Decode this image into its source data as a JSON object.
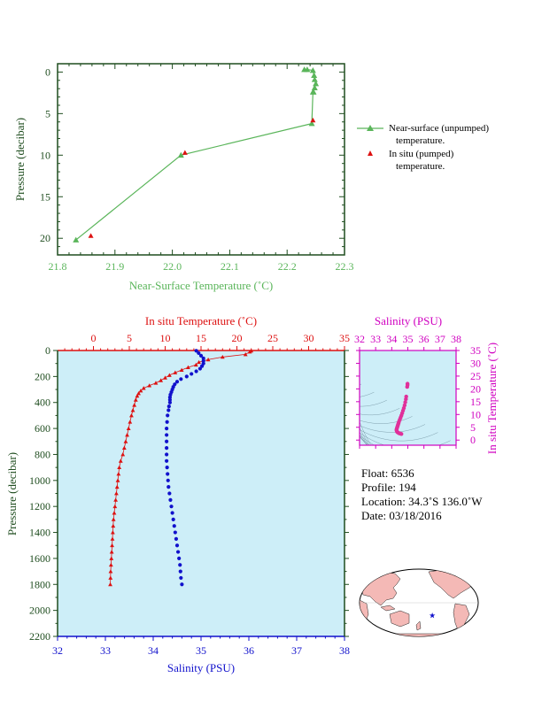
{
  "colors": {
    "green": "#5ab55a",
    "red": "#dd1111",
    "blue": "#1111cc",
    "magenta": "#d000c0",
    "axis_dark": "#1f4d1f",
    "panel_bg": "#cdeef8",
    "land": "#f4b9b6",
    "ocean": "#ffffff"
  },
  "top_chart": {
    "chart_data": {
      "type": "line",
      "xlabel": "Near-Surface Temperature (˚C)",
      "ylabel": "Pressure (decibar)",
      "xlim": [
        21.8,
        22.3
      ],
      "ylim": [
        22,
        -1
      ],
      "xticks": [
        "21.8",
        "21.9",
        "22.0",
        "22.1",
        "22.2",
        "22.3"
      ],
      "yticks": [
        "0",
        "5",
        "10",
        "15",
        "20"
      ],
      "series": [
        {
          "name": "Near-surface (unpumped) temperature.",
          "x": [
            22.23,
            22.235,
            22.245,
            22.247,
            22.248,
            22.25,
            22.248,
            22.246,
            22.245,
            22.243,
            22.015,
            21.832
          ],
          "y": [
            -0.3,
            -0.3,
            -0.2,
            0.4,
            0.9,
            1.4,
            1.9,
            2.4,
            2.4,
            6.2,
            10.0,
            20.2
          ],
          "marker": "triangle",
          "line": true
        },
        {
          "name": "In situ (pumped) temperature.",
          "x": [
            22.245,
            22.022,
            21.858
          ],
          "y": [
            5.8,
            9.7,
            19.7
          ],
          "marker": "triangle",
          "line": false
        }
      ]
    },
    "legend": {
      "item1_line1": "Near-surface (unpumped)",
      "item1_line2": "temperature.",
      "item2_line1": "In situ (pumped)",
      "item2_line2": "temperature."
    }
  },
  "profile_chart": {
    "chart_data": {
      "type": "scatter",
      "top_xlabel": "In situ Temperature (˚C)",
      "bottom_xlabel": "Salinity (PSU)",
      "ylabel": "Pressure (decibar)",
      "temp_lim": [
        -5,
        35
      ],
      "sal_lim": [
        32,
        38
      ],
      "pres_lim": [
        0,
        2200
      ],
      "temp_ticks": [
        "0",
        "5",
        "10",
        "15",
        "20",
        "25",
        "30",
        "35"
      ],
      "sal_ticks": [
        "32",
        "33",
        "34",
        "35",
        "36",
        "37",
        "38"
      ],
      "pres_ticks": [
        "0",
        "200",
        "400",
        "600",
        "800",
        "1000",
        "1200",
        "1400",
        "1600",
        "1800",
        "2000",
        "2200"
      ],
      "temperature_series": {
        "name": "In situ Temperature",
        "pressure": [
          2,
          10,
          30,
          50,
          70,
          90,
          110,
          130,
          150,
          170,
          190,
          210,
          230,
          250,
          270,
          290,
          310,
          330,
          350,
          380,
          420,
          460,
          500,
          550,
          600,
          650,
          700,
          750,
          800,
          850,
          900,
          950,
          1000,
          1050,
          1100,
          1150,
          1200,
          1250,
          1300,
          1350,
          1400,
          1450,
          1500,
          1550,
          1600,
          1650,
          1700,
          1750,
          1800
        ],
        "temperature": [
          22.0,
          21.8,
          21.2,
          18.0,
          16.0,
          14.7,
          14.3,
          13.2,
          12.3,
          11.4,
          10.6,
          10.0,
          9.4,
          8.7,
          7.8,
          7.0,
          6.6,
          6.3,
          6.1,
          5.9,
          5.7,
          5.5,
          5.3,
          5.1,
          4.9,
          4.7,
          4.5,
          4.3,
          4.1,
          3.8,
          3.6,
          3.5,
          3.4,
          3.3,
          3.2,
          3.1,
          3.0,
          2.9,
          2.8,
          2.75,
          2.7,
          2.65,
          2.6,
          2.55,
          2.5,
          2.45,
          2.4,
          2.38,
          2.35
        ]
      },
      "salinity_series": {
        "name": "Salinity",
        "pressure": [
          2,
          20,
          40,
          60,
          80,
          100,
          120,
          140,
          160,
          180,
          200,
          220,
          240,
          260,
          280,
          300,
          320,
          340,
          360,
          380,
          400,
          430,
          460,
          500,
          550,
          600,
          650,
          700,
          750,
          800,
          850,
          900,
          950,
          1000,
          1050,
          1100,
          1150,
          1200,
          1250,
          1300,
          1350,
          1400,
          1450,
          1500,
          1550,
          1600,
          1650,
          1700,
          1750,
          1800
        ],
        "salinity": [
          34.9,
          34.95,
          35.0,
          35.05,
          35.05,
          35.05,
          35.02,
          34.98,
          34.9,
          34.8,
          34.7,
          34.58,
          34.5,
          34.45,
          34.42,
          34.4,
          34.38,
          34.36,
          34.35,
          34.35,
          34.35,
          34.33,
          34.32,
          34.3,
          34.29,
          34.28,
          34.28,
          34.28,
          34.28,
          34.28,
          34.28,
          34.29,
          34.3,
          34.31,
          34.32,
          34.34,
          34.36,
          34.38,
          34.4,
          34.42,
          34.44,
          34.46,
          34.48,
          34.5,
          34.52,
          34.54,
          34.56,
          34.57,
          34.58,
          34.6
        ]
      }
    }
  },
  "ts_chart": {
    "chart_data": {
      "type": "scatter",
      "xlabel": "Salinity (PSU)",
      "ylabel": "In situ Temperature (˚C)",
      "xlim": [
        32,
        38
      ],
      "ylim": [
        -2,
        35
      ],
      "xticks": [
        "32",
        "33",
        "34",
        "35",
        "36",
        "37",
        "38"
      ],
      "yticks": [
        "0",
        "5",
        "10",
        "15",
        "20",
        "25",
        "30",
        "35"
      ],
      "points": [
        [
          34.98,
          22.0
        ],
        [
          34.98,
          21.5
        ],
        [
          34.96,
          20.8
        ],
        [
          34.9,
          17.0
        ],
        [
          34.88,
          16.0
        ],
        [
          34.84,
          14.8
        ],
        [
          34.8,
          13.6
        ],
        [
          34.75,
          12.5
        ],
        [
          34.7,
          11.5
        ],
        [
          34.65,
          10.5
        ],
        [
          34.6,
          9.6
        ],
        [
          34.55,
          8.8
        ],
        [
          34.5,
          8.0
        ],
        [
          34.45,
          7.2
        ],
        [
          34.42,
          6.6
        ],
        [
          34.4,
          6.2
        ],
        [
          34.38,
          5.8
        ],
        [
          34.36,
          5.4
        ],
        [
          34.34,
          5.0
        ],
        [
          34.32,
          4.6
        ],
        [
          34.3,
          4.2
        ],
        [
          34.3,
          3.8
        ],
        [
          34.32,
          3.4
        ],
        [
          34.35,
          3.1
        ],
        [
          34.4,
          2.9
        ],
        [
          34.45,
          2.7
        ],
        [
          34.5,
          2.6
        ],
        [
          34.55,
          2.5
        ],
        [
          34.6,
          2.4
        ]
      ]
    }
  },
  "info": {
    "float": "Float:  6536",
    "profile": "Profile:  194",
    "location": "Location:  34.3˚S  136.0˚W",
    "date": "Date:  03/18/2016"
  },
  "map": {
    "marker": "float-location-star",
    "lat": -34.3,
    "lon": -136.0
  }
}
